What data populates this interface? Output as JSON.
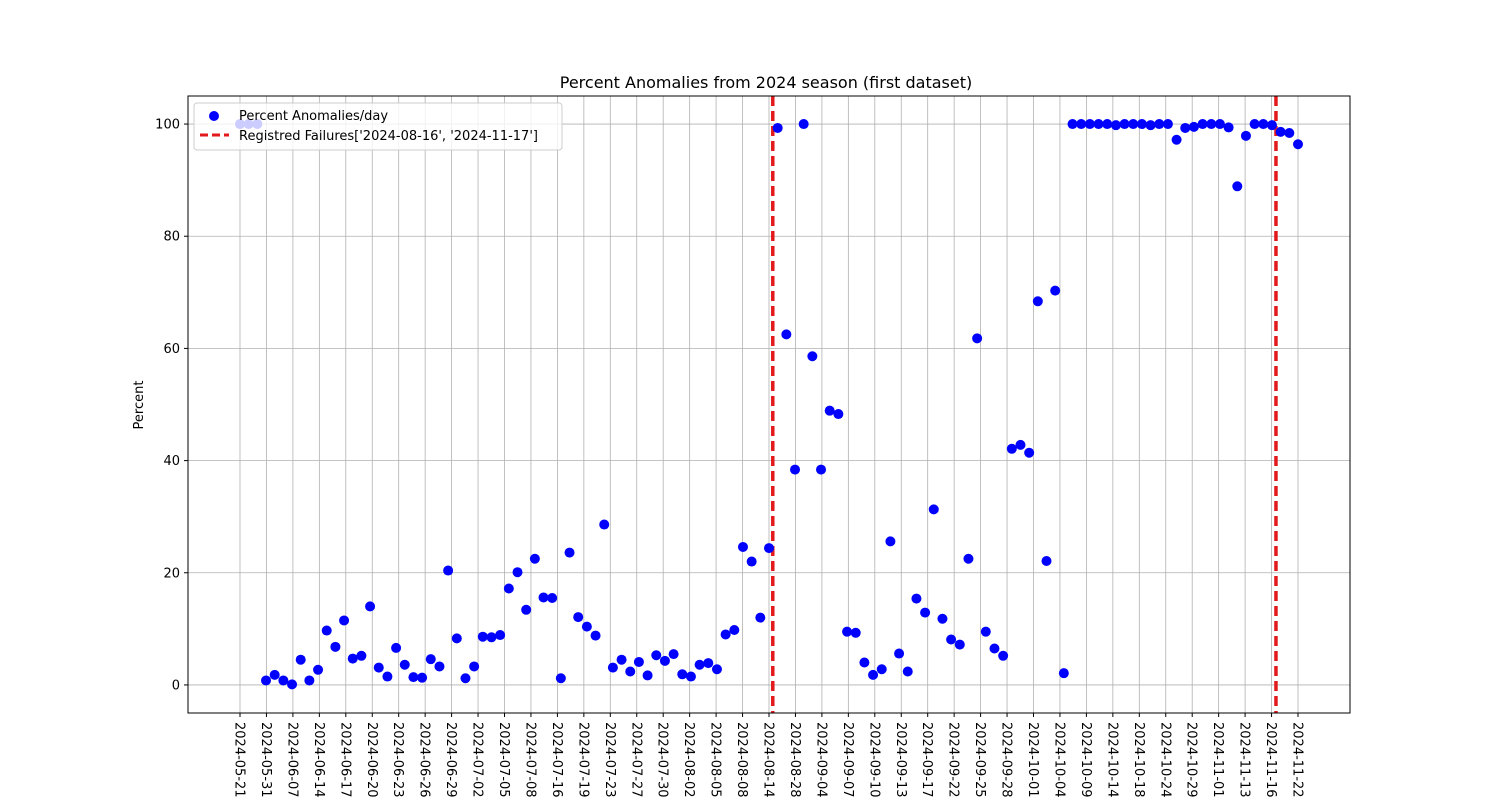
{
  "chart_data": {
    "type": "scatter",
    "title": "Percent Anomalies from 2024 season (first dataset)",
    "xlabel": "",
    "ylabel": "Percent",
    "ylim": [
      -5,
      105
    ],
    "yticks": [
      0,
      20,
      40,
      60,
      80,
      100
    ],
    "grid": true,
    "legend_position": "top-left",
    "x_tick_labels": [
      "2024-05-21",
      "2024-05-31",
      "2024-06-07",
      "2024-06-14",
      "2024-06-17",
      "2024-06-20",
      "2024-06-23",
      "2024-06-26",
      "2024-06-29",
      "2024-07-02",
      "2024-07-05",
      "2024-07-08",
      "2024-07-16",
      "2024-07-19",
      "2024-07-23",
      "2024-07-27",
      "2024-07-30",
      "2024-08-02",
      "2024-08-05",
      "2024-08-08",
      "2024-08-14",
      "2024-08-28",
      "2024-09-04",
      "2024-09-07",
      "2024-09-10",
      "2024-09-13",
      "2024-09-17",
      "2024-09-22",
      "2024-09-25",
      "2024-09-28",
      "2024-10-01",
      "2024-10-04",
      "2024-10-09",
      "2024-10-14",
      "2024-10-18",
      "2024-10-24",
      "2024-10-29",
      "2024-11-01",
      "2024-11-13",
      "2024-11-16",
      "2024-11-22"
    ],
    "series": [
      {
        "name": "Percent Anomalies/day",
        "color": "#0000ff",
        "marker": "circle",
        "values": [
          100,
          100,
          100,
          0.8,
          1.8,
          0.8,
          0.1,
          4.5,
          0.8,
          2.7,
          9.7,
          6.8,
          11.5,
          4.7,
          5.2,
          14.0,
          3.1,
          1.5,
          6.6,
          3.6,
          1.4,
          1.3,
          4.6,
          3.3,
          20.4,
          8.3,
          1.2,
          3.3,
          8.6,
          8.5,
          8.9,
          17.2,
          20.1,
          13.4,
          22.5,
          15.6,
          15.5,
          1.2,
          23.6,
          12.1,
          10.4,
          8.8,
          28.6,
          3.1,
          4.5,
          2.4,
          4.1,
          1.7,
          5.3,
          4.3,
          5.5,
          1.9,
          1.5,
          3.6,
          3.9,
          2.8,
          9.0,
          9.8,
          24.6,
          22.0,
          12.0,
          24.4,
          99.3,
          62.5,
          38.4,
          100,
          58.6,
          38.4,
          48.9,
          48.3,
          9.5,
          9.3,
          4.0,
          1.8,
          2.8,
          25.6,
          5.6,
          2.4,
          15.4,
          12.9,
          31.3,
          11.8,
          8.1,
          7.2,
          22.5,
          61.8,
          9.5,
          6.5,
          5.2,
          42.1,
          42.8,
          41.4,
          68.4,
          22.1,
          70.3,
          2.1,
          100,
          100,
          100,
          100,
          100,
          99.8,
          100,
          100,
          100,
          99.8,
          100,
          100,
          97.2,
          99.3,
          99.5,
          100,
          100,
          100,
          99.4,
          88.9,
          97.9,
          100,
          100,
          99.8,
          98.6,
          98.4,
          96.4
        ]
      }
    ],
    "failures": {
      "name": "Registred Failures['2024-08-16', '2024-11-17']",
      "color": "#e31a1c",
      "dates": [
        "2024-08-16",
        "2024-11-17"
      ]
    }
  }
}
